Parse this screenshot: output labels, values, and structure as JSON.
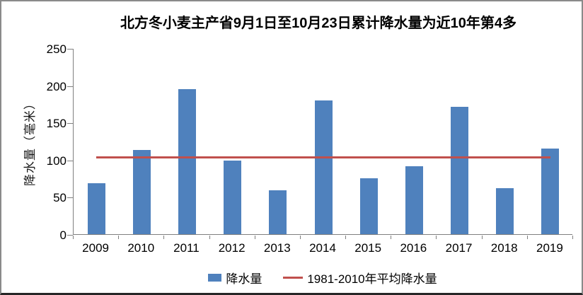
{
  "chart_data": {
    "type": "bar",
    "title": "北方冬小麦主产省9月1日至10月23日累计降水量为近10年第4多",
    "ylabel": "降水量（毫米）",
    "xlabel": "",
    "categories": [
      "2009",
      "2010",
      "2011",
      "2012",
      "2013",
      "2014",
      "2015",
      "2016",
      "2017",
      "2018",
      "2019"
    ],
    "series": [
      {
        "name": "降水量",
        "type": "bar",
        "color": "#4F81BD",
        "values": [
          68,
          113,
          195,
          99,
          59,
          180,
          75,
          91,
          171,
          62,
          115
        ]
      },
      {
        "name": "1981-2010年平均降水量",
        "type": "line",
        "color": "#C0504D",
        "value": 104
      }
    ],
    "ylim": [
      0,
      250
    ],
    "yticks": [
      0,
      50,
      100,
      150,
      200,
      250
    ],
    "grid": false,
    "legend_position": "bottom",
    "axis_color": "#808080"
  },
  "legend": {
    "bar_label": "降水量",
    "line_label": "1981-2010年平均降水量"
  }
}
